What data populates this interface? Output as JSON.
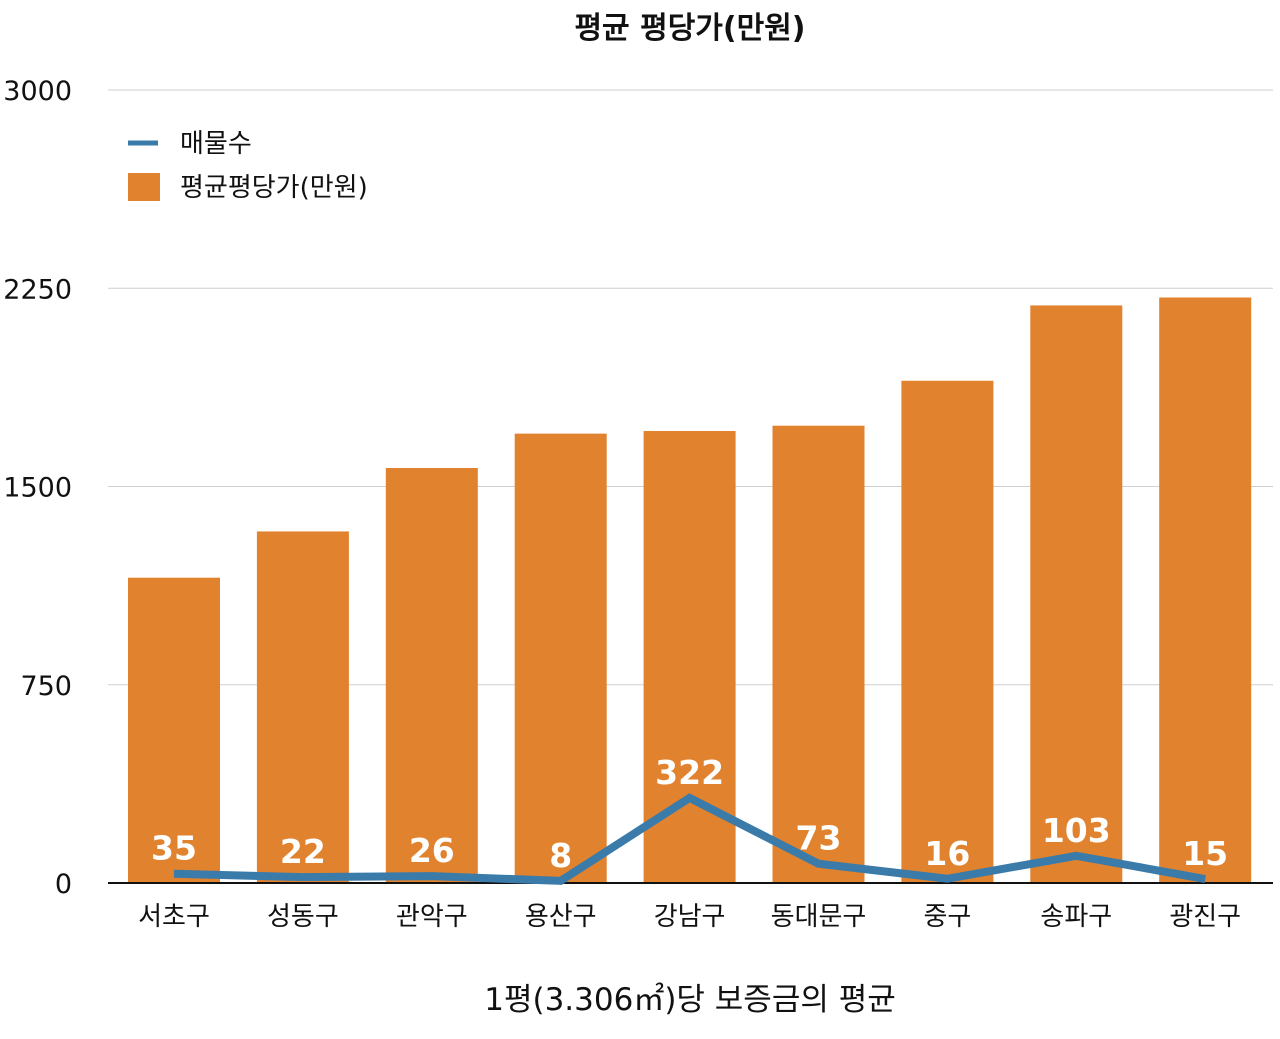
{
  "chart_data": {
    "type": "bar",
    "title": "평균 평당가(만원)",
    "xlabel": "1평(3.306㎡)당 보증금의 평균",
    "ylabel": "",
    "ylim": [
      0,
      3000
    ],
    "yticks": [
      "0",
      "750",
      "1500",
      "2250",
      "3000"
    ],
    "grid": true,
    "legend": "top-left",
    "categories": [
      "서초구",
      "성동구",
      "관악구",
      "용산구",
      "강남구",
      "동대문구",
      "중구",
      "송파구",
      "광진구"
    ],
    "series": [
      {
        "name": "평균평당가(만원)",
        "type": "bar",
        "color": "#E0822E",
        "values": [
          1155,
          1330,
          1570,
          1700,
          1710,
          1730,
          1900,
          2185,
          2215
        ]
      },
      {
        "name": "매물수",
        "type": "line",
        "color": "#3A7BAA",
        "values": [
          35,
          22,
          26,
          8,
          322,
          73,
          16,
          103,
          15
        ],
        "labels": [
          "35",
          "22",
          "26",
          "8",
          "322",
          "73",
          "16",
          "103",
          "15"
        ]
      }
    ]
  }
}
